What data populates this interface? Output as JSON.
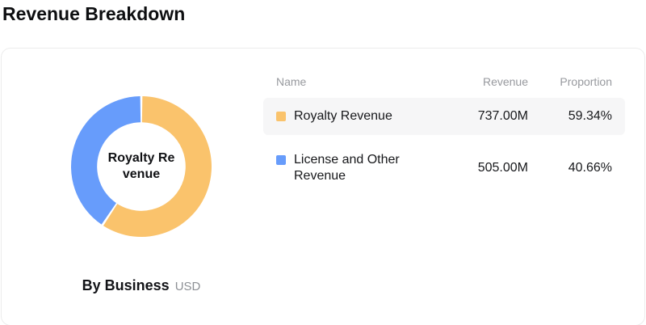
{
  "page": {
    "title": "Revenue Breakdown"
  },
  "card": {
    "footer": {
      "label": "By Business",
      "unit": "USD"
    }
  },
  "table": {
    "headers": [
      "Name",
      "Revenue",
      "Proportion"
    ],
    "rows": [
      {
        "name": "Royalty Revenue",
        "revenue": "737.00M",
        "proportion": "59.34%",
        "color": "#FAC36C",
        "highlighted": true
      },
      {
        "name": "License and Other Revenue",
        "revenue": "505.00M",
        "proportion": "40.66%",
        "color": "#679CFB",
        "highlighted": false
      }
    ]
  },
  "chart_data": {
    "type": "pie",
    "subtype": "donut",
    "title": "Revenue Breakdown",
    "center_label": "Royalty Revenue",
    "footer_label": "By Business",
    "unit": "USD",
    "labels": [
      "Royalty Revenue",
      "License and Other Revenue"
    ],
    "values": [
      737.0,
      505.0
    ],
    "display_values": [
      "737.00M",
      "505.00M"
    ],
    "proportions_pct": [
      59.34,
      40.66
    ],
    "colors": [
      "#FAC36C",
      "#679CFB"
    ],
    "start_angle_deg": 0,
    "clockwise": true,
    "inner_radius_ratio": 0.63,
    "legend_position": "right-table"
  }
}
